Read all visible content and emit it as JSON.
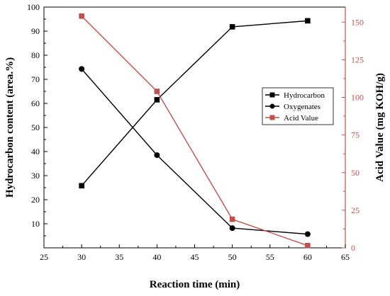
{
  "colors": {
    "left_axis": "#000000",
    "right_axis": "#c0504d",
    "hydrocarbon": "#000000",
    "oxygenates": "#000000",
    "acid_value": "#c0504d",
    "acid_marker_fill": "#c0504d"
  },
  "chart_data": {
    "type": "line",
    "xlabel": "Reaction time (min)",
    "ylabel_left": "Hydrocarbon content (area.%)",
    "ylabel_right": "Acid Value (mg KOH/g)",
    "xlim": [
      25,
      65
    ],
    "ylim_left": [
      0,
      100
    ],
    "ylim_right": [
      0,
      160
    ],
    "xticks": [
      25,
      30,
      35,
      40,
      45,
      50,
      55,
      60,
      65
    ],
    "yticks_left": [
      10,
      20,
      30,
      40,
      50,
      60,
      70,
      80,
      90,
      100
    ],
    "yticks_right": [
      0,
      25,
      50,
      75,
      100,
      125,
      150
    ],
    "grid": false,
    "legend_position": "right",
    "x": [
      30,
      40,
      50,
      60
    ],
    "series": [
      {
        "name": "Hydrocarbon",
        "axis": "left",
        "marker": "square",
        "values": [
          25.8,
          61.5,
          91.8,
          94.3
        ]
      },
      {
        "name": "Oxygenates",
        "axis": "left",
        "marker": "circle",
        "values": [
          74.3,
          38.5,
          8.2,
          5.7
        ]
      },
      {
        "name": "Acid Value",
        "axis": "right",
        "marker": "square",
        "values": [
          154,
          104,
          19,
          1.5
        ]
      }
    ]
  }
}
